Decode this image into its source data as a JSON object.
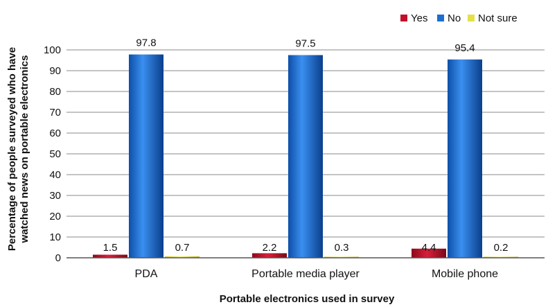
{
  "chart_data": {
    "type": "bar",
    "categories": [
      "PDA",
      "Portable media player",
      "Mobile phone"
    ],
    "series": [
      {
        "name": "Yes",
        "values": [
          1.5,
          2.2,
          4.4
        ],
        "color": "#c0102a"
      },
      {
        "name": "No",
        "values": [
          97.8,
          97.5,
          95.4
        ],
        "color": "#1a6fd1"
      },
      {
        "name": "Not sure",
        "values": [
          0.7,
          0.3,
          0.2
        ],
        "color": "#e4e04a"
      }
    ],
    "value_labels": [
      [
        "1.5",
        "97.8",
        "0.7"
      ],
      [
        "2.2",
        "97.5",
        "0.3"
      ],
      [
        "4.4",
        "95.4",
        "0.2"
      ]
    ],
    "title": "",
    "xlabel": "Portable electronics used in survey",
    "ylabel_lines": [
      "Percentage of people surveyed who have",
      "watched news on portable electronics"
    ],
    "ylim": [
      0,
      100
    ],
    "yticks": [
      0,
      10,
      20,
      30,
      40,
      50,
      60,
      70,
      80,
      90,
      100
    ],
    "grid": true,
    "legend_position": "top-right"
  }
}
